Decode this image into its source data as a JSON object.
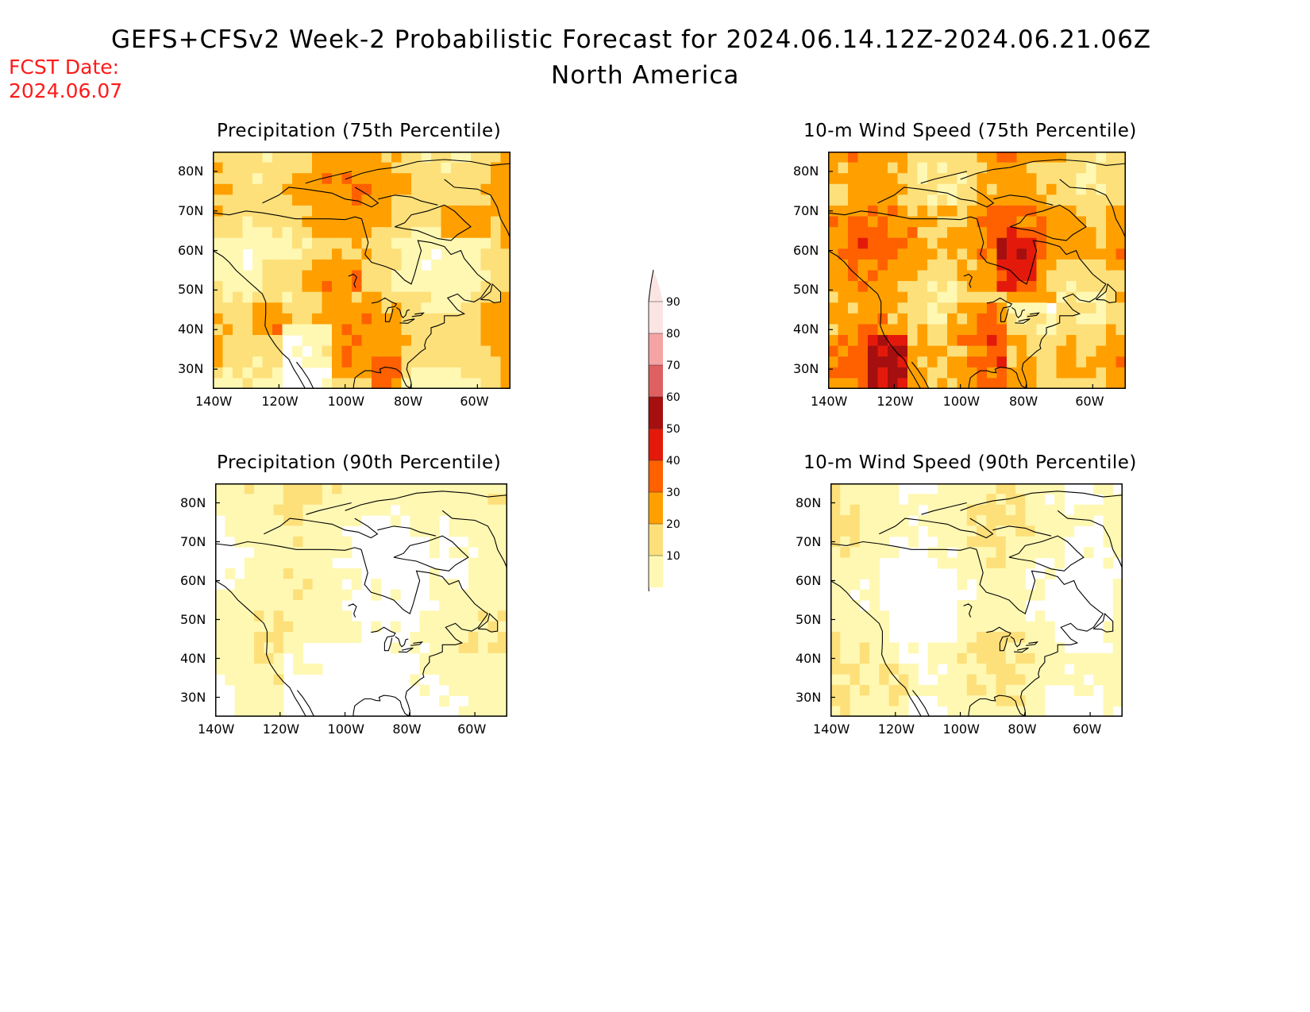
{
  "header": {
    "title_line1": "GEFS+CFSv2 Week-2 Probabilistic Forecast for 2024.06.14.12Z-2024.06.21.06Z",
    "title_line2": "North America",
    "fcst_label": "FCST Date:",
    "fcst_date": "2024.06.07",
    "fcst_color": "#ff1a1a"
  },
  "axes": {
    "lat_labels": [
      "80N",
      "70N",
      "60N",
      "50N",
      "40N",
      "30N"
    ],
    "lon_labels": [
      "140W",
      "120W",
      "100W",
      "80W",
      "60W"
    ]
  },
  "panels": [
    {
      "id": "precip75",
      "title": "Precipitation (75th Percentile)",
      "level": "high",
      "variable": "precip"
    },
    {
      "id": "wind75",
      "title": "10-m Wind Speed (75th Percentile)",
      "level": "high",
      "variable": "wind"
    },
    {
      "id": "precip90",
      "title": "Precipitation (90th Percentile)",
      "level": "low",
      "variable": "precip"
    },
    {
      "id": "wind90",
      "title": "10-m Wind Speed (90th Percentile)",
      "level": "low",
      "variable": "wind"
    }
  ],
  "colorbar": {
    "labels": [
      "90",
      "80",
      "70",
      "60",
      "50",
      "40",
      "30",
      "20",
      "10"
    ],
    "colors": [
      "#fbe4e4",
      "#f5a3a3",
      "#de6060",
      "#a50f0f",
      "#e31a0b",
      "#ff6000",
      "#ffa000",
      "#fde07a",
      "#fff8b3"
    ]
  }
}
